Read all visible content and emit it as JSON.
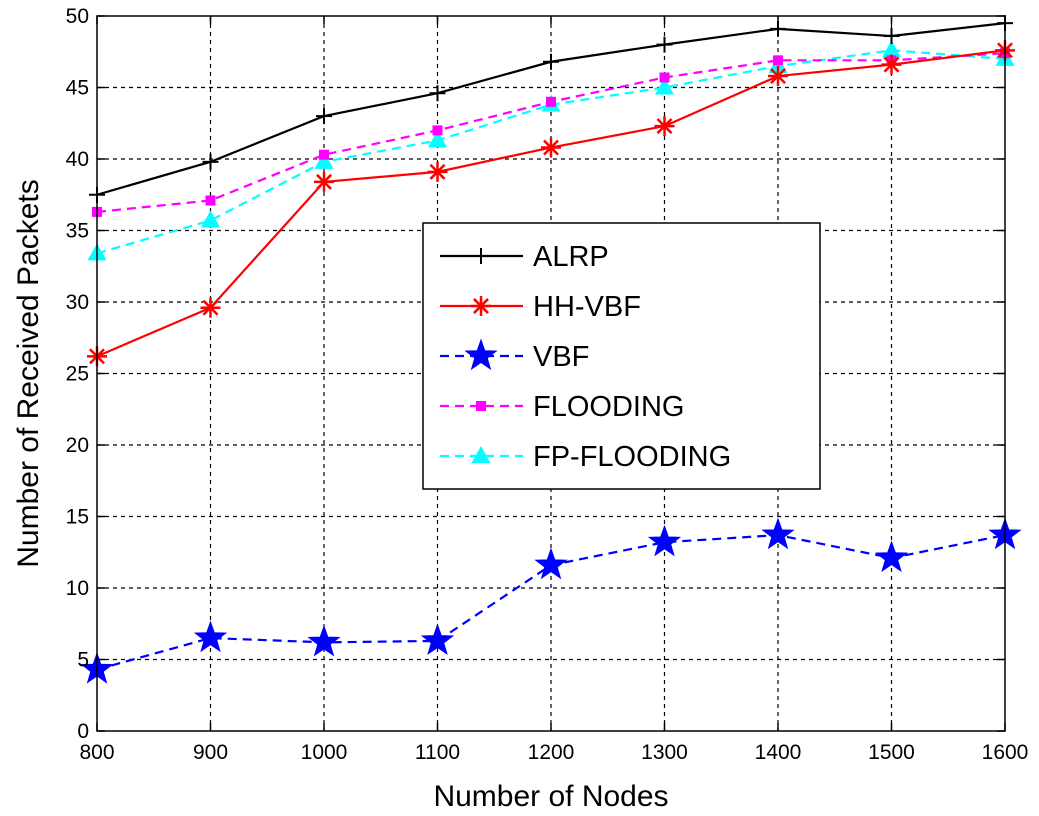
{
  "chart_data": {
    "type": "line",
    "title": "",
    "xlabel": "Number of Nodes",
    "ylabel": "Number of Received Packets",
    "x": [
      800,
      900,
      1000,
      1100,
      1200,
      1300,
      1400,
      1500,
      1600
    ],
    "xlim": [
      800,
      1600
    ],
    "ylim": [
      0,
      50
    ],
    "xticks": [
      "800",
      "900",
      "1000",
      "1100",
      "1200",
      "1300",
      "1400",
      "1500",
      "1600"
    ],
    "yticks": [
      "0",
      "5",
      "10",
      "15",
      "20",
      "25",
      "30",
      "35",
      "40",
      "45",
      "50"
    ],
    "grid": true,
    "legend_position": "center",
    "series": [
      {
        "name": "ALRP",
        "values": [
          37.5,
          39.8,
          43.0,
          44.6,
          46.8,
          48.0,
          49.1,
          48.6,
          49.5
        ],
        "color": "#000000",
        "line_style": "solid",
        "marker": "plus"
      },
      {
        "name": "HH-VBF",
        "values": [
          26.2,
          29.6,
          38.4,
          39.1,
          40.8,
          42.3,
          45.8,
          46.6,
          47.6
        ],
        "color": "#ff0000",
        "line_style": "solid",
        "marker": "asterisk"
      },
      {
        "name": "VBF",
        "values": [
          4.3,
          6.5,
          6.2,
          6.3,
          11.6,
          13.2,
          13.7,
          12.1,
          13.7
        ],
        "color": "#0000ff",
        "line_style": "dashed",
        "marker": "star"
      },
      {
        "name": "FLOODING",
        "values": [
          36.3,
          37.1,
          40.3,
          42.0,
          44.0,
          45.7,
          46.9,
          46.9,
          47.4
        ],
        "color": "#ff00ff",
        "line_style": "dashed",
        "marker": "square"
      },
      {
        "name": "FP-FLOODING",
        "values": [
          33.4,
          35.7,
          39.8,
          41.3,
          43.8,
          45.0,
          46.5,
          47.6,
          47.0
        ],
        "color": "#00ffff",
        "line_style": "dashed",
        "marker": "triangle"
      }
    ]
  }
}
